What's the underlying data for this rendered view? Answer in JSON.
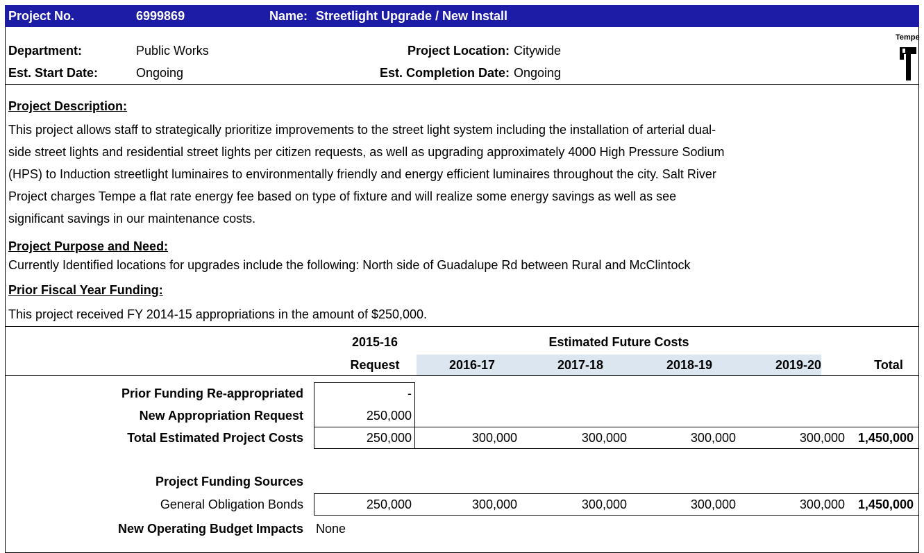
{
  "header": {
    "project_no_label": "Project No.",
    "project_no": "6999869",
    "name_label": "Name:",
    "name": "Streetlight Upgrade / New Install"
  },
  "info": {
    "department_label": "Department:",
    "department": "Public Works",
    "location_label": "Project Location:",
    "location": "Citywide",
    "start_label": "Est. Start Date:",
    "start": "Ongoing",
    "completion_label": "Est. Completion Date:",
    "completion": "Ongoing"
  },
  "logo": {
    "text": "Tempe"
  },
  "description": {
    "heading": "Project Description:",
    "lines": [
      "This project allows staff to strategically prioritize improvements to the street light system including the installation of arterial dual-",
      "side street lights and residential street lights per citizen requests, as well as upgrading approximately 4000 High Pressure Sodium",
      "(HPS)  to Induction streetlight luminaires to environmentally friendly and energy efficient luminaires throughout the city. Salt River",
      "Project charges Tempe a flat rate energy fee based on type of fixture and will realize some energy savings as well as see",
      "significant savings in our maintenance costs."
    ]
  },
  "purpose": {
    "heading": "Project Purpose and Need:",
    "text": "Currently Identified locations for upgrades include the following:  North side of Guadalupe Rd between Rural and McClintock"
  },
  "prior": {
    "heading": "Prior Fiscal Year Funding:",
    "text": "This project received FY 2014-15 appropriations in the amount of $250,000."
  },
  "table": {
    "request_year": "2015-16",
    "request_label": "Request",
    "future_label": "Estimated Future Costs",
    "years": [
      "2016-17",
      "2017-18",
      "2018-19",
      "2019-20"
    ],
    "total_label": "Total",
    "rows": [
      {
        "label": "Prior Funding Re-appropriated",
        "values": [
          "-"
        ]
      },
      {
        "label": "New Appropriation Request",
        "values": [
          "250,000"
        ]
      },
      {
        "label": "Total Estimated Project Costs",
        "values": [
          "250,000",
          "300,000",
          "300,000",
          "300,000",
          "300,000",
          "1,450,000"
        ]
      }
    ],
    "funding_heading": "Project Funding Sources",
    "funding_rows": [
      {
        "label": "General Obligation Bonds",
        "values": [
          "250,000",
          "300,000",
          "300,000",
          "300,000",
          "300,000",
          "1,450,000"
        ]
      }
    ],
    "operating_label": "New Operating Budget Impacts",
    "operating_value": "None"
  }
}
